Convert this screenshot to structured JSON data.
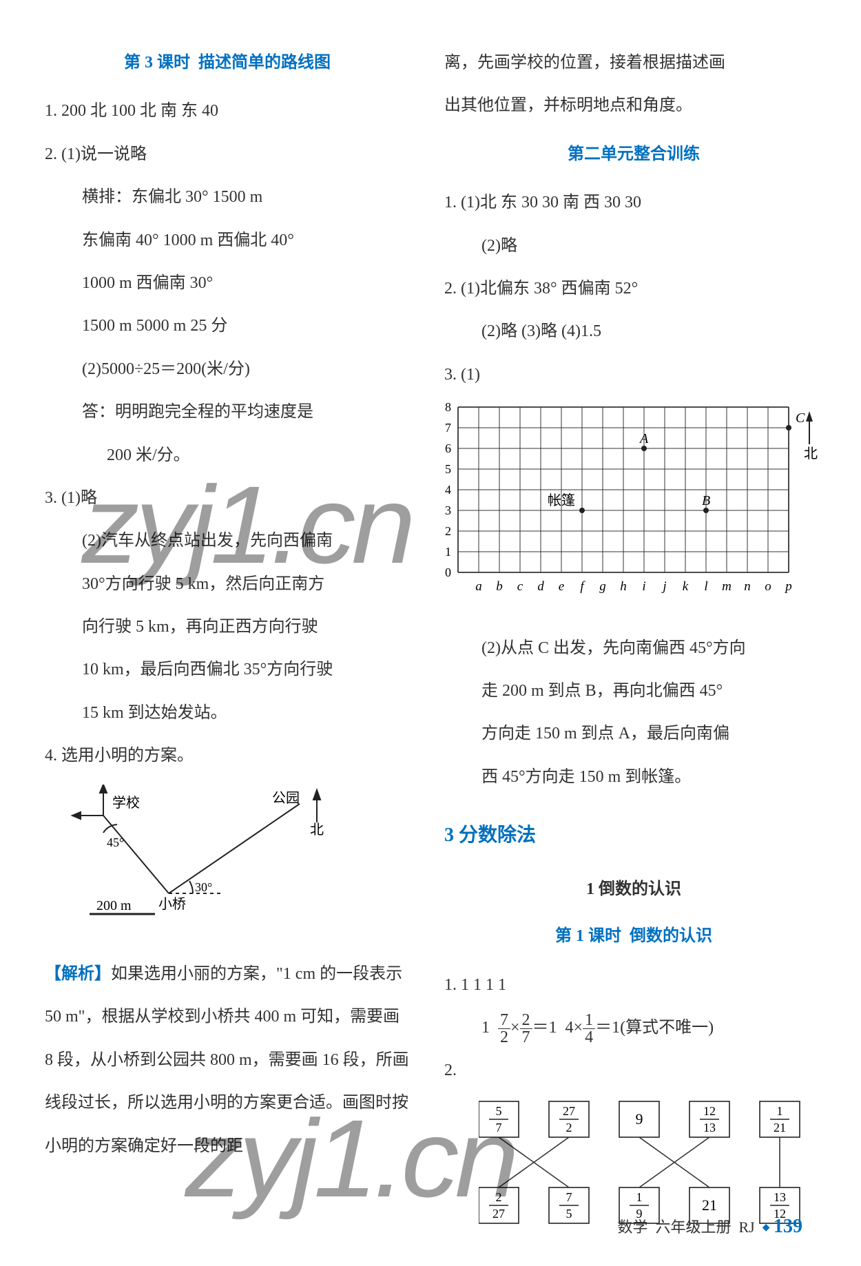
{
  "left": {
    "lesson_heading_num": "第 3 课时",
    "lesson_heading_title": "描述简单的路线图",
    "q1": "1.  200  北  100  北  南  东  40",
    "q2_head": "2.  (1)说一说略",
    "q2_l1": "横排：东偏北 30°  1500 m",
    "q2_l2": "东偏南 40°  1000 m  西偏北 40°",
    "q2_l3": "1000 m  西偏南 30°",
    "q2_l4": "1500 m  5000 m  25 分",
    "q2_part2_eq": "(2)5000÷25＝200(米/分)",
    "q2_part2_ans": "答：明明跑完全程的平均速度是",
    "q2_part2_ans2": "200 米/分。",
    "q3_head": "3.  (1)略",
    "q3_2a": "(2)汽车从终点站出发，先向西偏南",
    "q3_2b": "30°方向行驶 5 km，然后向正南方",
    "q3_2c": "向行驶 5 km，再向正西方向行驶",
    "q3_2d": "10 km，最后向西偏北 35°方向行驶",
    "q3_2e": "15 km 到达始发站。",
    "q4_head": "4.  选用小明的方案。",
    "diagram4": {
      "school": "学校",
      "park": "公园",
      "north": "北",
      "bridge": "小桥",
      "angle1": "45°",
      "angle2": "30°",
      "scale": "200 m",
      "stroke": "#222222",
      "font_size": 20
    },
    "analysis_label": "【解析】",
    "analysis_body": "如果选用小丽的方案，\"1 cm 的一段表示 50 m\"，根据从学校到小桥共 400 m 可知，需要画 8 段，从小桥到公园共 800 m，需要画 16 段，所画线段过长，所以选用小明的方案更合适。画图时按小明的方案确定好一段的距"
  },
  "right": {
    "cont1": "离，先画学校的位置，接着根据描述画",
    "cont2": "出其他位置，并标明地点和角度。",
    "unit_heading": "第二单元整合训练",
    "u_q1a": "1.  (1)北  东  30  30  南  西  30  30",
    "u_q1b": "(2)略",
    "u_q2a": "2.  (1)北偏东 38°  西偏南 52°",
    "u_q2b": "(2)略  (3)略  (4)1.5",
    "u_q3": "3.  (1)",
    "grid": {
      "rows": 8,
      "cols": 16,
      "cell": 30,
      "grid_color": "#333333",
      "xlabels": [
        "a",
        "b",
        "c",
        "d",
        "e",
        "f",
        "g",
        "h",
        "i",
        "j",
        "k",
        "l",
        "m",
        "n",
        "o",
        "p"
      ],
      "ylabels": [
        "0",
        "1",
        "2",
        "3",
        "4",
        "5",
        "6",
        "7",
        "8"
      ],
      "north": "北",
      "points": [
        {
          "label": "A",
          "col": 9,
          "row": 6
        },
        {
          "label": "B",
          "col": 12,
          "row": 3
        },
        {
          "label": "C",
          "col": 16,
          "row": 7
        },
        {
          "label": "帐篷",
          "col": 6,
          "row": 3
        }
      ]
    },
    "u_q3_2a": "(2)从点 C 出发，先向南偏西 45°方向",
    "u_q3_2b": "走 200 m 到点 B，再向北偏西 45°",
    "u_q3_2c": "方向走 150 m 到点 A，最后向南偏",
    "u_q3_2d": "西 45°方向走 150 m 到帐篷。",
    "chapter": "3  分数除法",
    "subsection": "1  倒数的认识",
    "lesson2_num": "第 1 课时",
    "lesson2_title": "倒数的认识",
    "r_q1": "1.  1  1  1  1",
    "r_q1_eq": "1  7/2×2/7＝1  4×1/4＝1(算式不唯一)",
    "r_q2": "2.",
    "boxes_top": [
      "5/7",
      "27/2",
      "9",
      "12/13",
      "1/21"
    ],
    "boxes_bot": [
      "2/27",
      "7/5",
      "1/9",
      "21",
      "13/12"
    ],
    "cross_color": "#333333"
  },
  "footer": {
    "subject": "数学",
    "grade": "六年级上册",
    "edition": "RJ",
    "page": "139"
  },
  "watermarks": {
    "text": "zyj1.cn"
  }
}
